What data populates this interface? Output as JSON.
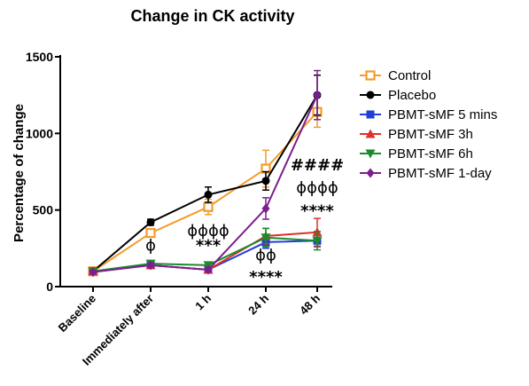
{
  "chart_data": {
    "type": "line",
    "title": "Change in CK activity",
    "xlabel": "",
    "ylabel": "Percentage of change",
    "ylim": [
      0,
      1500
    ],
    "yticks": [
      0,
      500,
      1000,
      1500
    ],
    "categories": [
      "Baseline",
      "Immediately after",
      "1 h",
      "24 h",
      "48 h"
    ],
    "legend_position": "right",
    "series": [
      {
        "name": "Control",
        "color": "#f39c2b",
        "marker": "square-open",
        "values": [
          100,
          350,
          520,
          770,
          1140
        ],
        "errors": [
          10,
          25,
          50,
          120,
          100
        ]
      },
      {
        "name": "Placebo",
        "color": "#000000",
        "marker": "circle",
        "values": [
          100,
          420,
          600,
          690,
          1250
        ],
        "errors": [
          10,
          20,
          50,
          60,
          130
        ]
      },
      {
        "name": "PBMT-sMF 5 mins",
        "color": "#1f3fd6",
        "marker": "square",
        "values": [
          100,
          140,
          110,
          290,
          300
        ],
        "errors": [
          10,
          20,
          15,
          40,
          40
        ]
      },
      {
        "name": "PBMT-sMF 3h",
        "color": "#e0302a",
        "marker": "triangle-up",
        "values": [
          100,
          140,
          110,
          330,
          355
        ],
        "errors": [
          10,
          20,
          15,
          50,
          90
        ]
      },
      {
        "name": "PBMT-sMF 6h",
        "color": "#1d8a2a",
        "marker": "triangle-down",
        "values": [
          100,
          150,
          140,
          320,
          300
        ],
        "errors": [
          10,
          20,
          20,
          60,
          60
        ]
      },
      {
        "name": "PBMT-sMF 1-day",
        "color": "#7b1f8e",
        "marker": "diamond",
        "values": [
          95,
          140,
          110,
          510,
          1250
        ],
        "errors": [
          10,
          15,
          15,
          70,
          160
        ]
      }
    ],
    "annotations": [
      {
        "text": "ϕ",
        "category": "Immediately after",
        "y": 235
      },
      {
        "text": "ϕϕϕϕ",
        "category": "1 h",
        "y": 330
      },
      {
        "text": "***",
        "category": "1 h",
        "y": 235
      },
      {
        "text": "ϕϕ",
        "category": "24 h",
        "y": 170
      },
      {
        "text": "****",
        "category": "24 h",
        "y": 30
      },
      {
        "text": "####",
        "category": "48 h",
        "y": 760
      },
      {
        "text": "ϕϕϕϕ",
        "category": "48 h",
        "y": 610
      },
      {
        "text": "****",
        "category": "48 h",
        "y": 460
      }
    ]
  }
}
